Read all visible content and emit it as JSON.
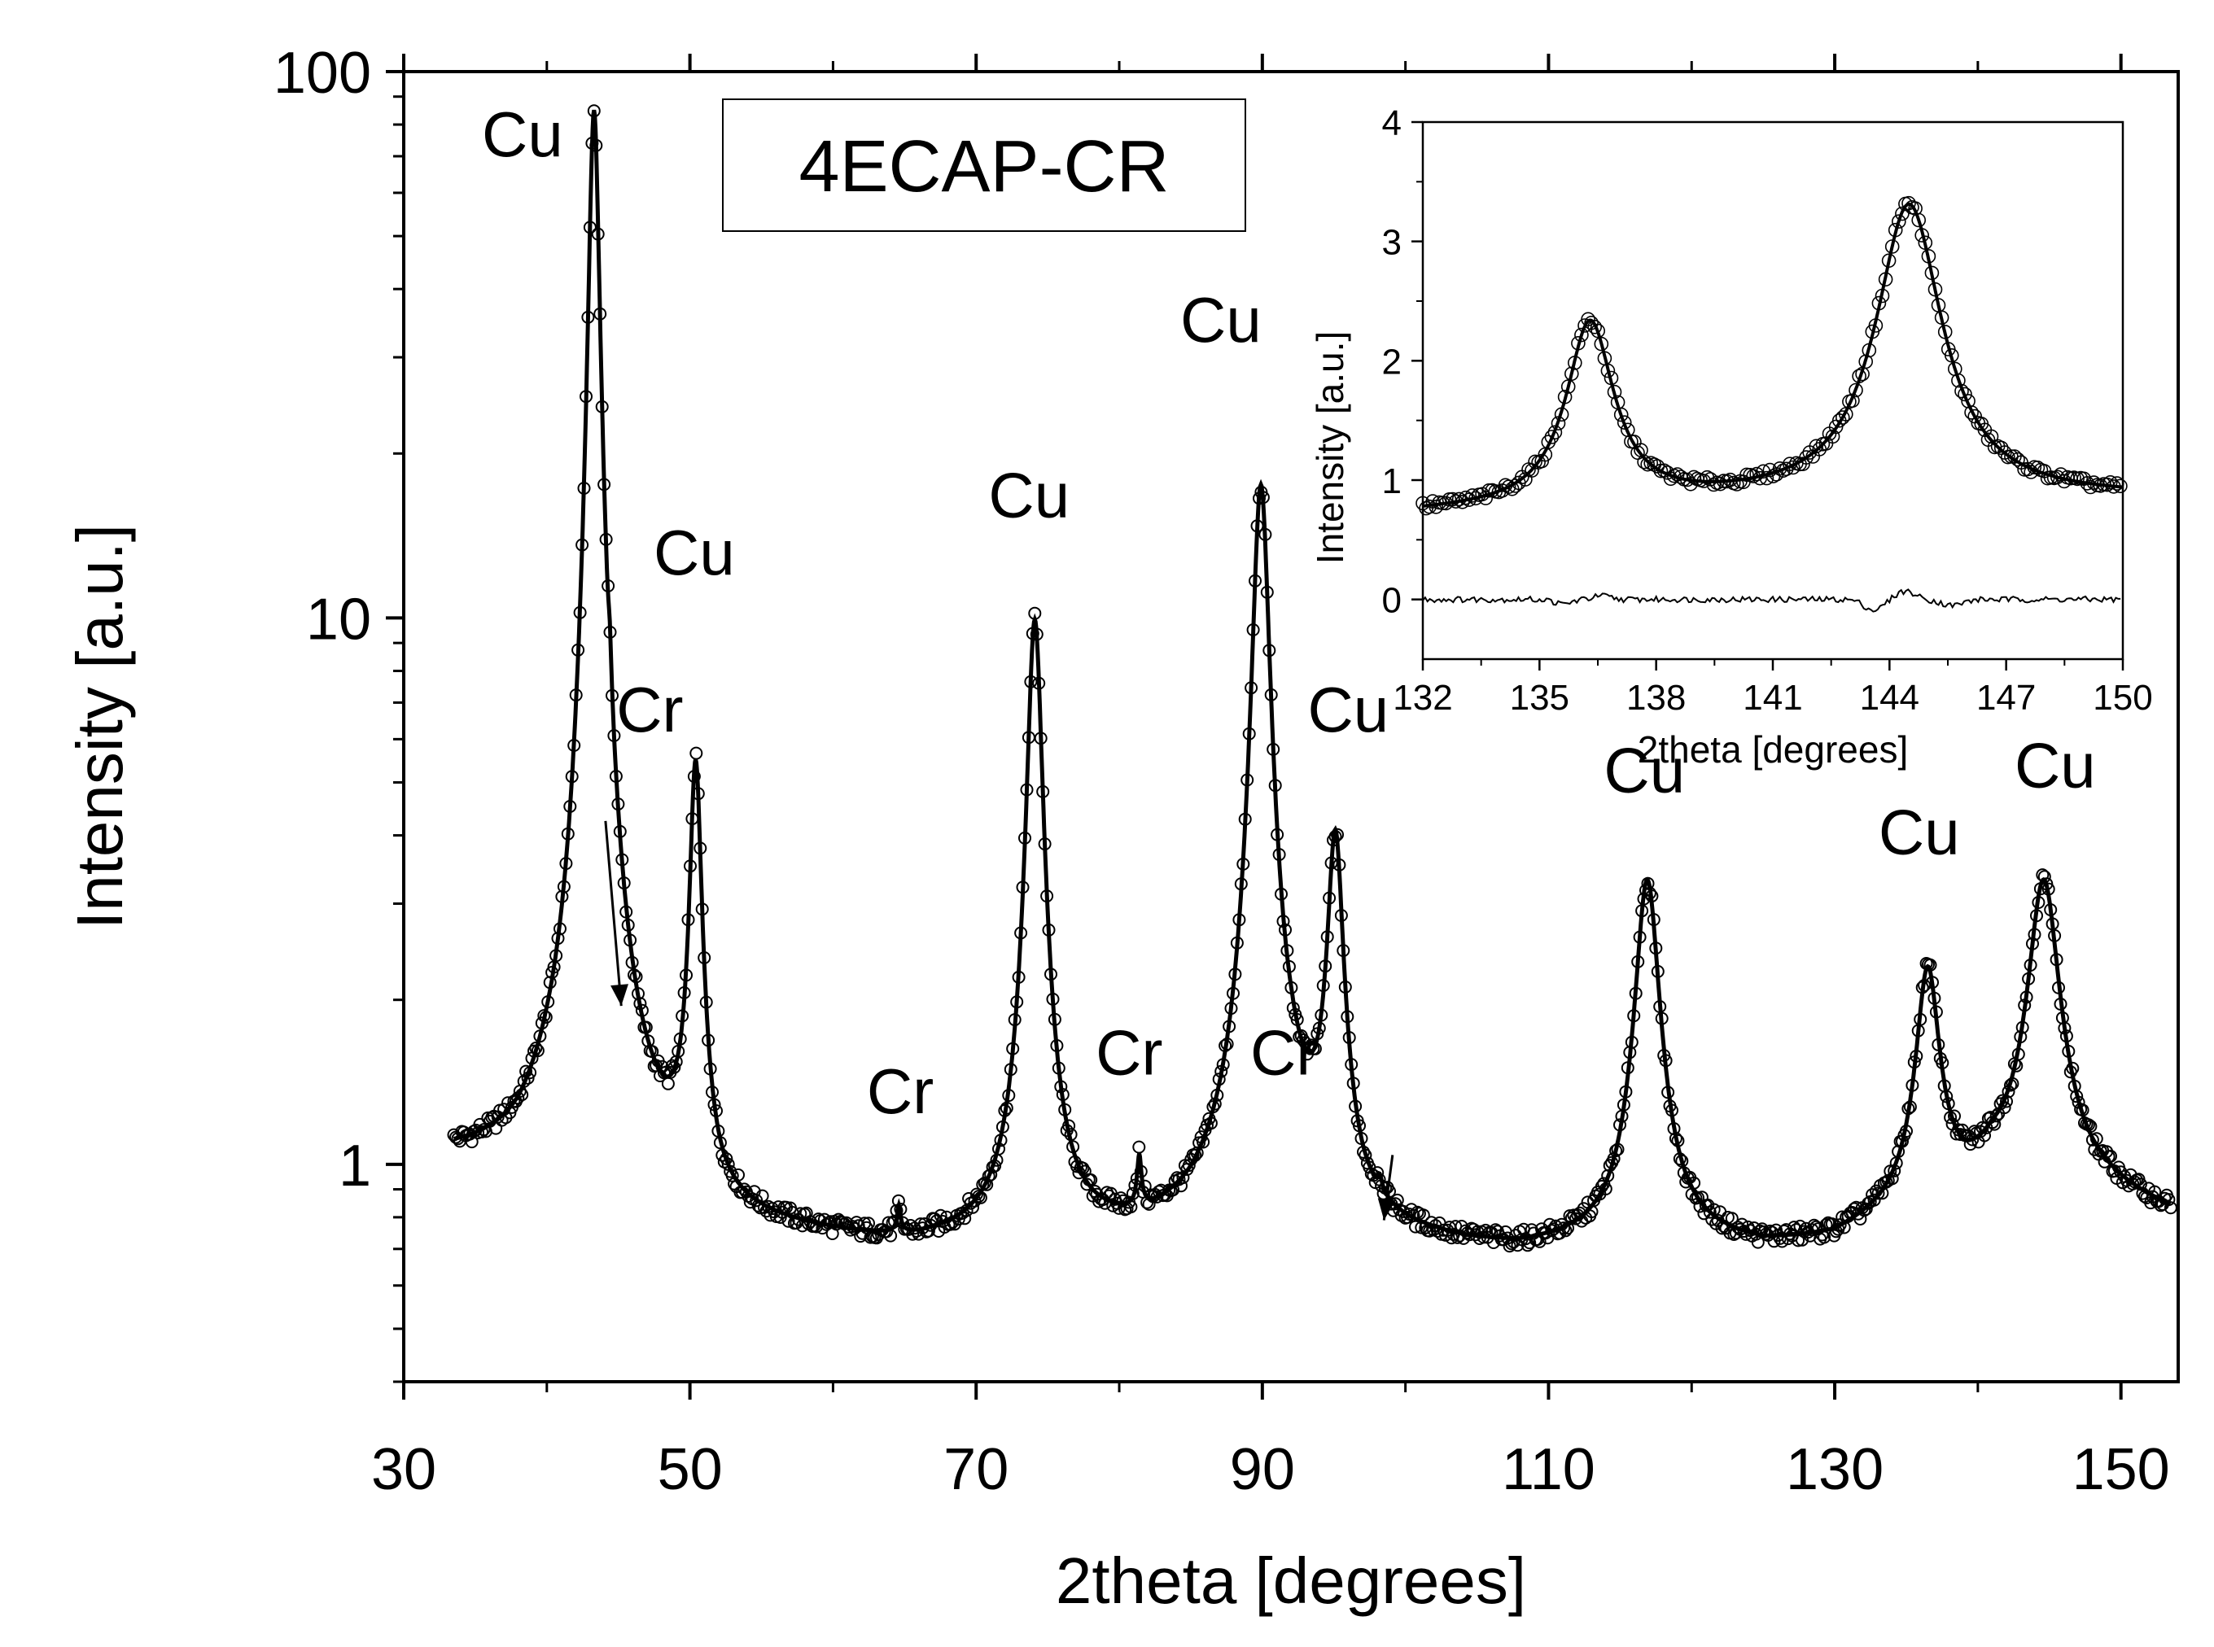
{
  "chart_data": [
    {
      "type": "scatter",
      "title": "4ECAP-CR",
      "xlabel": "2theta [degrees]",
      "ylabel": "Intensity [a.u.]",
      "xlim": [
        30,
        154
      ],
      "ylim": [
        0.4,
        100
      ],
      "yscale": "log",
      "x_ticks": [
        30,
        50,
        70,
        90,
        110,
        130,
        150
      ],
      "y_ticks": [
        1,
        10,
        100
      ],
      "x_tick_labels": [
        "30",
        "50",
        "70",
        "90",
        "110",
        "130",
        "150"
      ],
      "y_tick_labels": [
        "1",
        "10",
        "100"
      ],
      "baseline": [
        {
          "x": 33.5,
          "y": 1.0
        },
        {
          "x": 36,
          "y": 0.98
        },
        {
          "x": 38,
          "y": 0.96
        },
        {
          "x": 40,
          "y": 1.0
        },
        {
          "x": 47,
          "y": 0.9
        },
        {
          "x": 49,
          "y": 0.86
        },
        {
          "x": 52,
          "y": 0.74
        },
        {
          "x": 57,
          "y": 0.72
        },
        {
          "x": 62,
          "y": 0.7
        },
        {
          "x": 66,
          "y": 0.69
        },
        {
          "x": 70,
          "y": 0.7
        },
        {
          "x": 78,
          "y": 0.71
        },
        {
          "x": 82,
          "y": 0.72
        },
        {
          "x": 85,
          "y": 0.75
        },
        {
          "x": 88,
          "y": 0.82
        },
        {
          "x": 92,
          "y": 0.95
        },
        {
          "x": 97,
          "y": 0.74
        },
        {
          "x": 100,
          "y": 0.71
        },
        {
          "x": 104,
          "y": 0.69
        },
        {
          "x": 108,
          "y": 0.68
        },
        {
          "x": 113,
          "y": 0.7
        },
        {
          "x": 120,
          "y": 0.71
        },
        {
          "x": 125,
          "y": 0.69
        },
        {
          "x": 130,
          "y": 0.71
        },
        {
          "x": 139,
          "y": 0.87
        },
        {
          "x": 141,
          "y": 0.95
        },
        {
          "x": 149,
          "y": 0.87
        },
        {
          "x": 153.5,
          "y": 0.8
        }
      ],
      "peaks": [
        {
          "phase": "Cu",
          "position": 43.3,
          "intensity": 85,
          "width": 0.7
        },
        {
          "phase": "Cr",
          "position": 44.4,
          "intensity": 2.1,
          "width": 0.25
        },
        {
          "phase": "Cu",
          "position": 50.4,
          "intensity": 5.3,
          "width": 0.8
        },
        {
          "phase": "Cr",
          "position": 64.6,
          "intensity": 0.78,
          "width": 0.3
        },
        {
          "phase": "Cu",
          "position": 74.1,
          "intensity": 9.9,
          "width": 1.0
        },
        {
          "phase": "Cr",
          "position": 81.4,
          "intensity": 0.92,
          "width": 0.35
        },
        {
          "phase": "Cu",
          "position": 89.9,
          "intensity": 17.5,
          "width": 1.1
        },
        {
          "phase": "Cu",
          "position": 95.1,
          "intensity": 3.9,
          "width": 1.1
        },
        {
          "phase": "Cr",
          "position": 98.2,
          "intensity": 0.78,
          "width": 0.4
        },
        {
          "phase": "Cu",
          "position": 116.9,
          "intensity": 3.3,
          "width": 1.7
        },
        {
          "phase": "Cu",
          "position": 136.5,
          "intensity": 2.25,
          "width": 1.7
        },
        {
          "phase": "Cu",
          "position": 144.6,
          "intensity": 3.3,
          "width": 2.2
        }
      ],
      "annotations": [
        {
          "text": "Cu",
          "x": 38.3,
          "y": 70
        },
        {
          "text": "Cu",
          "x": 50.3,
          "y": 12
        },
        {
          "text": "Cr",
          "x": 47.2,
          "y": 6.2
        },
        {
          "text": "Cr",
          "x": 64.7,
          "y": 1.24
        },
        {
          "text": "Cu",
          "x": 73.7,
          "y": 15.3
        },
        {
          "text": "Cr",
          "x": 80.7,
          "y": 1.46
        },
        {
          "text": "Cu",
          "x": 87.1,
          "y": 32
        },
        {
          "text": "Cr",
          "x": 91.5,
          "y": 1.46
        },
        {
          "text": "Cu",
          "x": 96,
          "y": 6.2
        },
        {
          "text": "Cu",
          "x": 116.7,
          "y": 4.8
        },
        {
          "text": "Cu",
          "x": 135.9,
          "y": 3.7
        },
        {
          "text": "Cu",
          "x": 145.4,
          "y": 4.9
        }
      ],
      "arrows": [
        {
          "label": "Cr",
          "from": [
            44.1,
            4.25
          ],
          "to": [
            45.2,
            1.95
          ]
        },
        {
          "label": "Cr",
          "from": [
            99.1,
            1.04
          ],
          "to": [
            98.5,
            0.79
          ]
        }
      ]
    },
    {
      "type": "scatter",
      "title": "",
      "xlabel": "2theta [degrees]",
      "ylabel": "Intensity [a.u.]",
      "xlim": [
        132,
        150
      ],
      "ylim": [
        -0.5,
        4
      ],
      "x_ticks": [
        132,
        135,
        138,
        141,
        144,
        147,
        150
      ],
      "y_ticks": [
        0,
        1,
        2,
        3,
        4
      ],
      "x_tick_labels": [
        "132",
        "135",
        "138",
        "141",
        "144",
        "147",
        "150"
      ],
      "y_tick_labels": [
        "0",
        "1",
        "2",
        "3",
        "4"
      ],
      "series": [
        {
          "name": "measured",
          "marker": "circle"
        },
        {
          "name": "fit",
          "marker": "line"
        },
        {
          "name": "difference",
          "marker": "line"
        }
      ],
      "peaks": [
        {
          "position": 136.3,
          "intensity": 2.3
        },
        {
          "position": 144.5,
          "intensity": 3.3
        }
      ],
      "background": {
        "start": 0.72,
        "valley": 0.82,
        "end": 0.85
      },
      "difference_offset": 0.0
    }
  ]
}
